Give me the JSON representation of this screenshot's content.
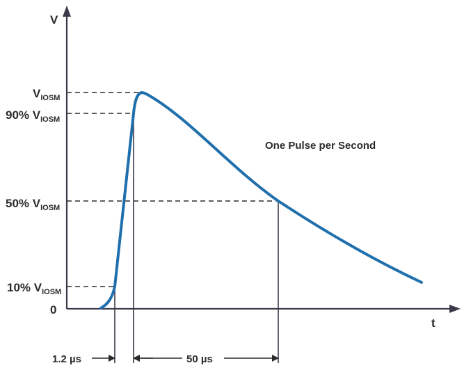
{
  "axes": {
    "y_label": "V",
    "x_label": "t"
  },
  "levels": {
    "vioswm": {
      "main": "V",
      "sub": "IOSM"
    },
    "ninety": {
      "main": "90% V",
      "sub": "IOSM"
    },
    "fifty": {
      "main": "50% V",
      "sub": "IOSM"
    },
    "ten": {
      "main": "10% V",
      "sub": "IOSM"
    },
    "zero": "0"
  },
  "annotation": "One Pulse per Second",
  "timing": {
    "rise": "1.2 µs",
    "decay": "50 µs"
  },
  "colors": {
    "pulse": "#1f6fad",
    "axis": "#3a3a4a",
    "text": "#2b2b2b"
  }
}
